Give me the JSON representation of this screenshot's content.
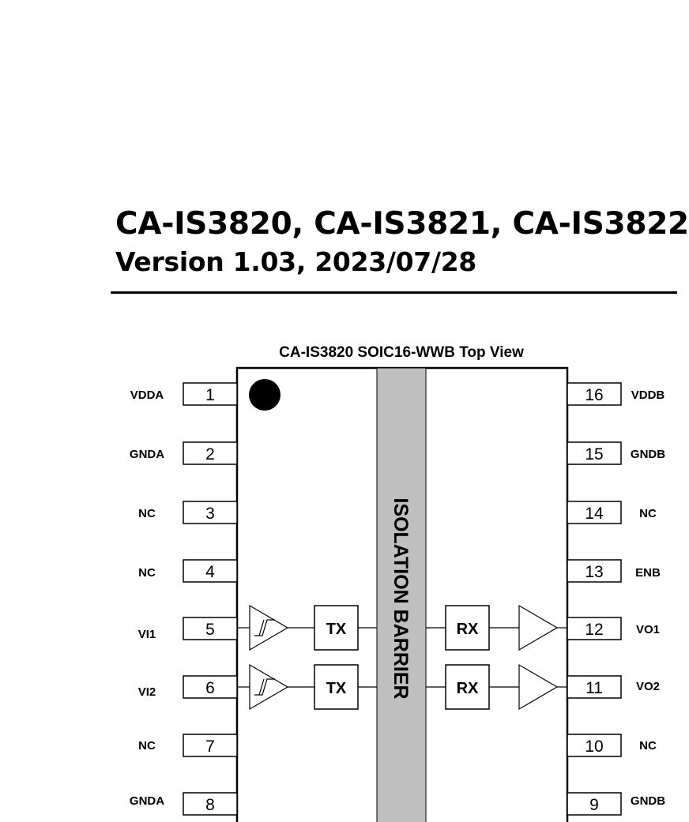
{
  "document": {
    "title": "CA-IS3820, CA-IS3821, CA-IS3822",
    "version": "Version 1.03, 2023/07/28"
  },
  "diagram": {
    "caption": "CA-IS3820 SOIC16-WWB Top View",
    "barrier_label": "ISOLATION BARRIER",
    "left_pins": [
      {
        "num": "1",
        "name": "VDDA"
      },
      {
        "num": "2",
        "name": "GNDA"
      },
      {
        "num": "3",
        "name": "NC"
      },
      {
        "num": "4",
        "name": "NC"
      },
      {
        "num": "5",
        "name": "VI1"
      },
      {
        "num": "6",
        "name": "VI2"
      },
      {
        "num": "7",
        "name": "NC"
      },
      {
        "num": "8",
        "name": "GNDA"
      }
    ],
    "right_pins": [
      {
        "num": "16",
        "name": "VDDB"
      },
      {
        "num": "15",
        "name": "GNDB"
      },
      {
        "num": "14",
        "name": "NC"
      },
      {
        "num": "13",
        "name": "ENB"
      },
      {
        "num": "12",
        "name": "VO1"
      },
      {
        "num": "11",
        "name": "VO2"
      },
      {
        "num": "10",
        "name": "NC"
      },
      {
        "num": "9",
        "name": "GNDB"
      }
    ],
    "channels": [
      {
        "tx_label": "TX",
        "rx_label": "RX"
      },
      {
        "tx_label": "TX",
        "rx_label": "RX"
      }
    ],
    "colors": {
      "barrier": "#bfbfbf",
      "line": "#000000"
    }
  }
}
